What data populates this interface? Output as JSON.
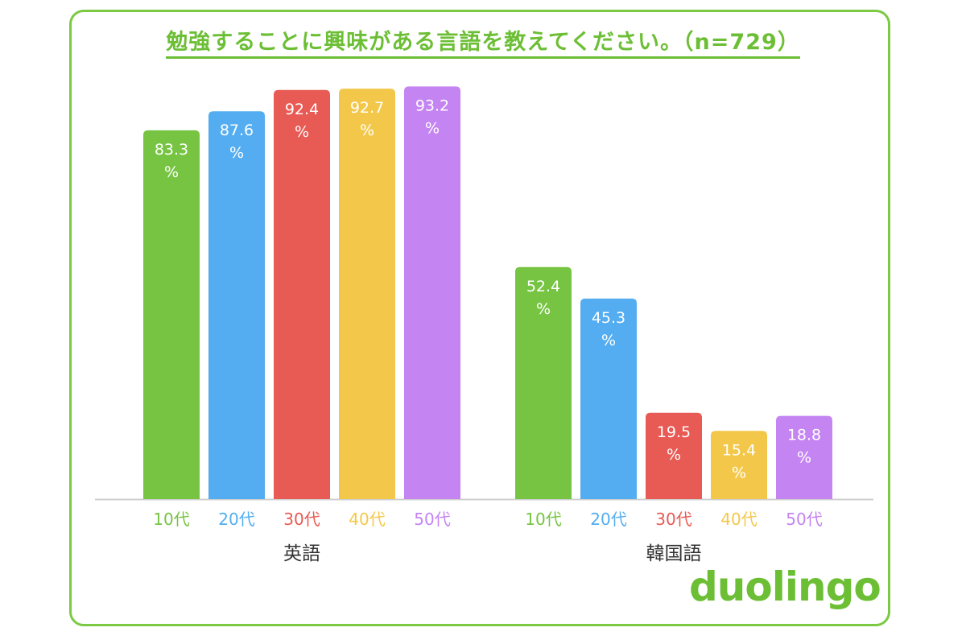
{
  "chart_data": {
    "type": "bar",
    "title": "勉強することに興味がある言語を教えてください。（n=729）",
    "unit": "%",
    "groups": [
      "英語",
      "韓国語"
    ],
    "series": [
      {
        "name": "10代",
        "color": "#76c442",
        "values": [
          83.3,
          52.4
        ]
      },
      {
        "name": "20代",
        "color": "#53adf0",
        "values": [
          87.6,
          45.3
        ]
      },
      {
        "name": "30代",
        "color": "#e85a54",
        "values": [
          92.4,
          19.5
        ]
      },
      {
        "name": "40代",
        "color": "#f3c84a",
        "values": [
          92.7,
          15.4
        ]
      },
      {
        "name": "50代",
        "color": "#c484f2",
        "values": [
          93.2,
          18.8
        ]
      }
    ],
    "ylim": [
      0,
      100
    ],
    "grid": false
  },
  "brand": {
    "logo_text": "duolingo",
    "color": "#6cbf35"
  }
}
